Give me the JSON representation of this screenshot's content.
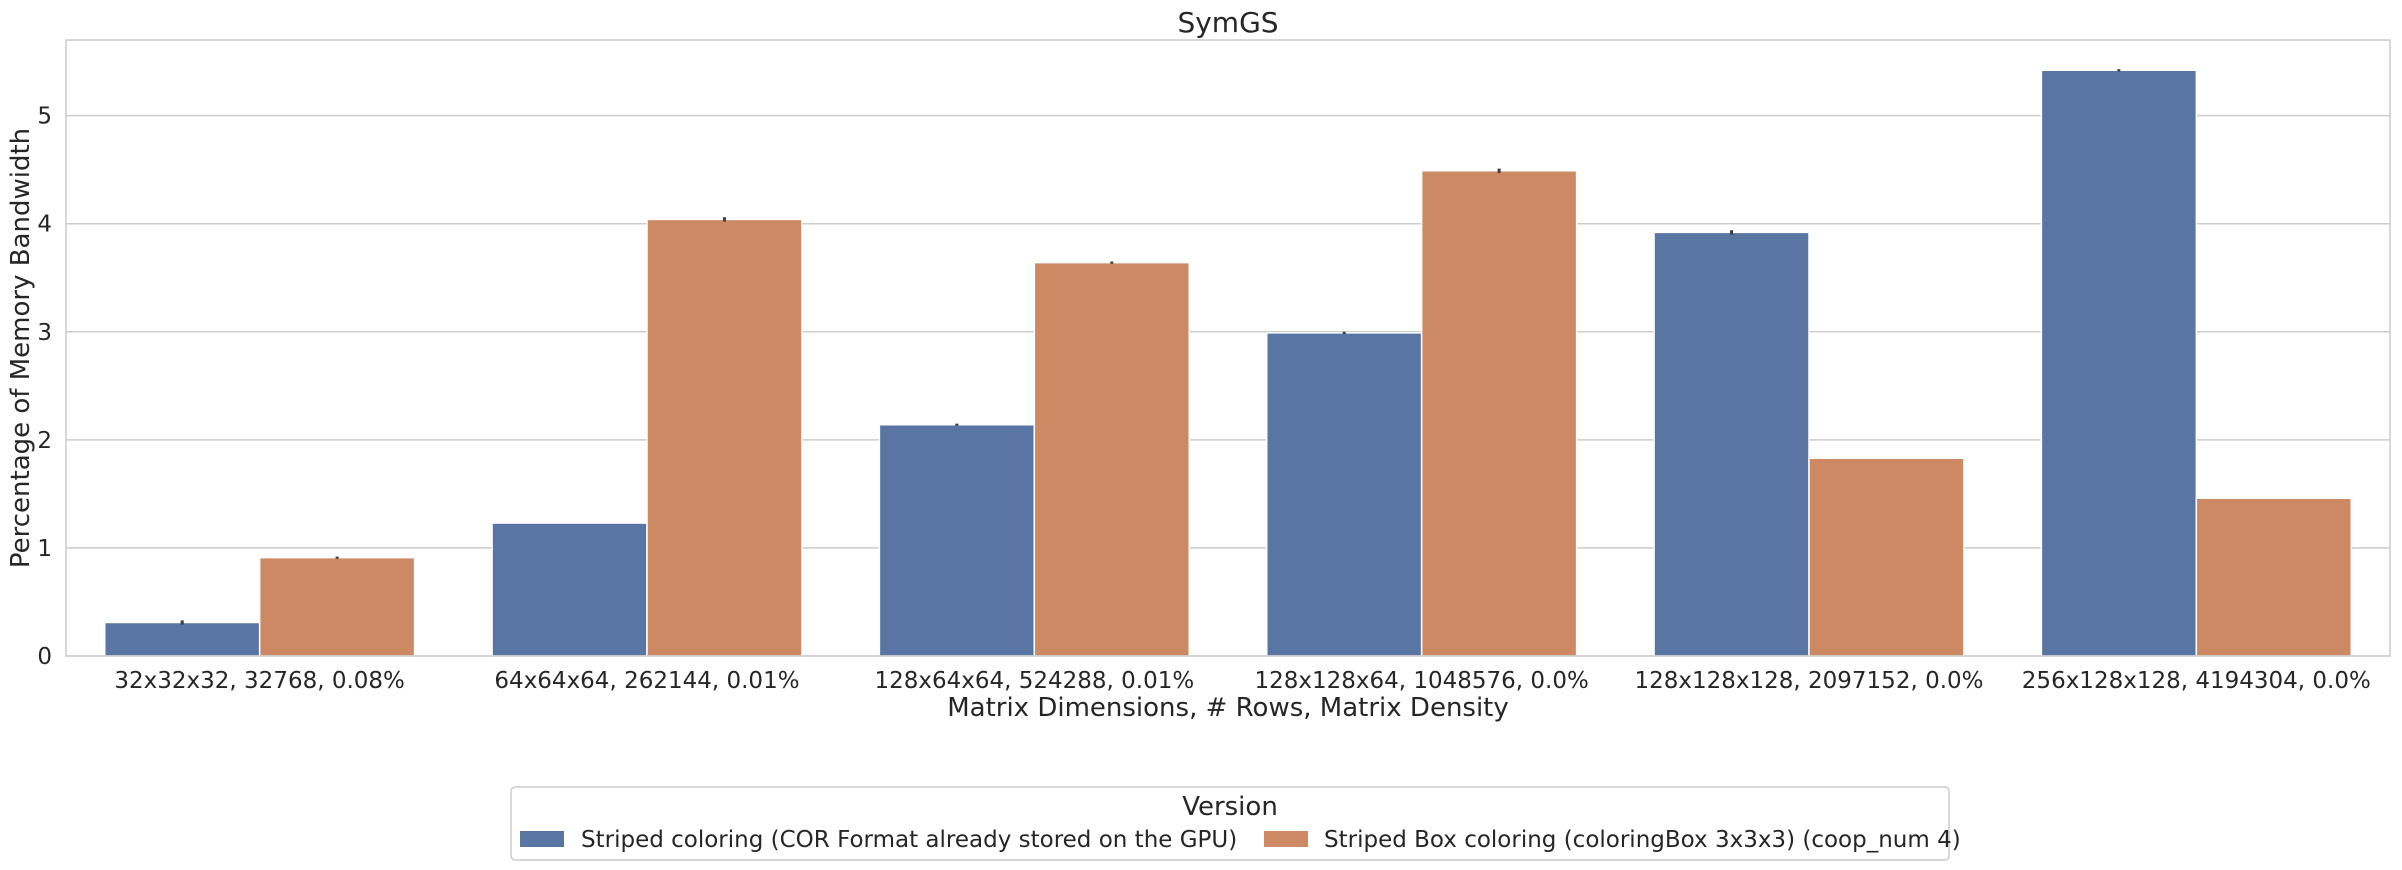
{
  "chart_data": {
    "type": "bar",
    "title": "SymGS",
    "xlabel": "Matrix Dimensions, # Rows, Matrix Density",
    "ylabel": "Percentage of Memory Bandwidth",
    "ylim": [
      0,
      5.7
    ],
    "yticks": [
      0,
      1,
      2,
      3,
      4,
      5
    ],
    "grid": "y",
    "categories": [
      "32x32x32, 32768, 0.08%",
      "64x64x64, 262144, 0.01%",
      "128x64x64, 524288, 0.01%",
      "128x128x64, 1048576, 0.0%",
      "128x128x128, 2097152, 0.0%",
      "256x128x128, 4194304, 0.0%"
    ],
    "series": [
      {
        "name": "Striped coloring (COR Format already stored on the GPU)",
        "color": "#5975a4",
        "values": [
          0.31,
          1.23,
          2.14,
          2.99,
          3.92,
          5.42
        ],
        "errors": [
          0.02,
          0.0,
          0.01,
          0.01,
          0.02,
          0.01
        ]
      },
      {
        "name": "Striped Box coloring (coloringBox 3x3x3) (coop_num 4)",
        "color": "#cc8963",
        "values": [
          0.91,
          4.04,
          3.64,
          4.49,
          1.83,
          1.46
        ],
        "errors": [
          0.01,
          0.02,
          0.01,
          0.02,
          0.0,
          0.0
        ]
      }
    ],
    "legend": {
      "title": "Version",
      "placement": "bottom-center"
    }
  }
}
